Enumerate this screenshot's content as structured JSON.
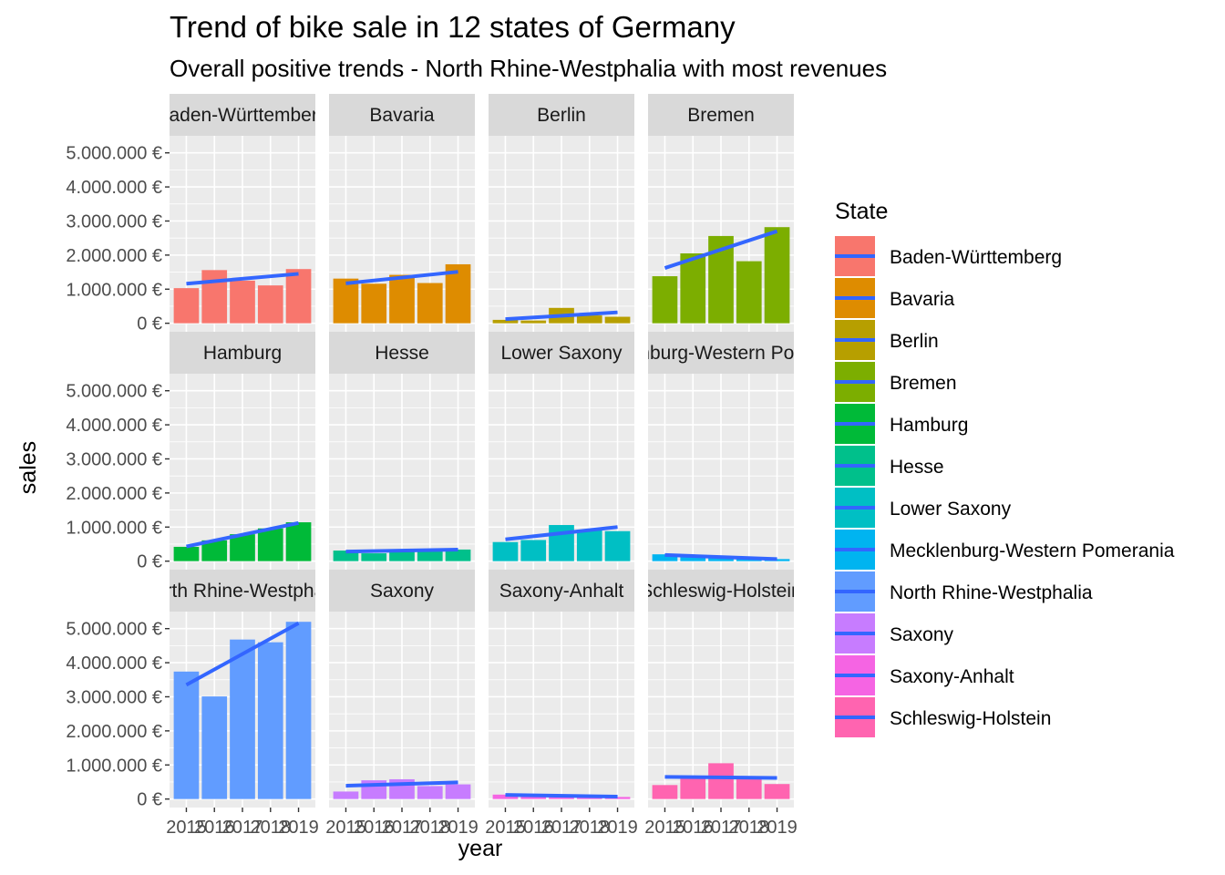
{
  "chart_data": {
    "type": "bar",
    "title": "Trend of bike sale in 12 states of Germany",
    "subtitle": "Overall positive trends - North Rhine-Westphalia with most revenues",
    "xlabel": "year",
    "ylabel": "sales",
    "x": [
      "2015",
      "2016",
      "2017",
      "2018",
      "2019"
    ],
    "y_ticks": [
      0,
      1000000,
      2000000,
      3000000,
      4000000,
      5000000
    ],
    "y_tick_labels": [
      "0 €",
      "1.000.000 €",
      "2.000.000 €",
      "3.000.000 €",
      "4.000.000 €",
      "5.000.000 €"
    ],
    "ylim": [
      -250000,
      5500000
    ],
    "grid": true,
    "legend_title": "State",
    "legend_position": "right",
    "trend_color": "#3366FF",
    "panels": [
      {
        "state": "Baden-Württemberg",
        "strip": "Baden-Württemberg",
        "color": "#F8766D",
        "values": [
          1030000,
          1560000,
          1250000,
          1110000,
          1590000
        ],
        "trend": [
          1160000,
          1450000
        ]
      },
      {
        "state": "Bavaria",
        "strip": "Bavaria",
        "color": "#DE8C00",
        "values": [
          1310000,
          1160000,
          1420000,
          1180000,
          1730000
        ],
        "trend": [
          1170000,
          1510000
        ]
      },
      {
        "state": "Berlin",
        "strip": "Berlin",
        "color": "#B79F00",
        "values": [
          100000,
          80000,
          450000,
          230000,
          190000
        ],
        "trend": [
          120000,
          320000
        ]
      },
      {
        "state": "Bremen",
        "strip": "Bremen",
        "color": "#7CAE00",
        "values": [
          1380000,
          2050000,
          2560000,
          1820000,
          2820000
        ],
        "trend": [
          1620000,
          2700000
        ]
      },
      {
        "state": "Hamburg",
        "strip": "Hamburg",
        "color": "#00BA38",
        "values": [
          420000,
          610000,
          790000,
          960000,
          1140000
        ],
        "trend": [
          430000,
          1120000
        ]
      },
      {
        "state": "Hesse",
        "strip": "Hesse",
        "color": "#00C08B",
        "values": [
          310000,
          230000,
          330000,
          290000,
          340000
        ],
        "trend": [
          280000,
          340000
        ]
      },
      {
        "state": "Lower Saxony",
        "strip": "Lower Saxony",
        "color": "#00BFC4",
        "values": [
          560000,
          620000,
          1060000,
          920000,
          880000
        ],
        "trend": [
          640000,
          1000000
        ]
      },
      {
        "state": "Mecklenburg-Western Pomerania",
        "strip": "Mecklenburg-Western Pomerania",
        "color": "#00B4F0",
        "values": [
          200000,
          140000,
          120000,
          110000,
          60000
        ],
        "trend": [
          180000,
          60000
        ]
      },
      {
        "state": "North Rhine-Westphalia",
        "strip": "North Rhine-Westphalia",
        "color": "#619CFF",
        "values": [
          3740000,
          3010000,
          4680000,
          4600000,
          5200000
        ],
        "trend": [
          3350000,
          5160000
        ]
      },
      {
        "state": "Saxony",
        "strip": "Saxony",
        "color": "#C77CFF",
        "values": [
          220000,
          550000,
          580000,
          380000,
          430000
        ],
        "trend": [
          390000,
          490000
        ]
      },
      {
        "state": "Saxony-Anhalt",
        "strip": "Saxony-Anhalt",
        "color": "#F564E3",
        "values": [
          130000,
          100000,
          100000,
          80000,
          60000
        ],
        "trend": [
          120000,
          70000
        ]
      },
      {
        "state": "Schleswig-Holstein",
        "strip": "Schleswig-Holstein",
        "color": "#FF64B0",
        "values": [
          410000,
          600000,
          1050000,
          620000,
          440000
        ],
        "trend": [
          650000,
          620000
        ]
      }
    ]
  }
}
